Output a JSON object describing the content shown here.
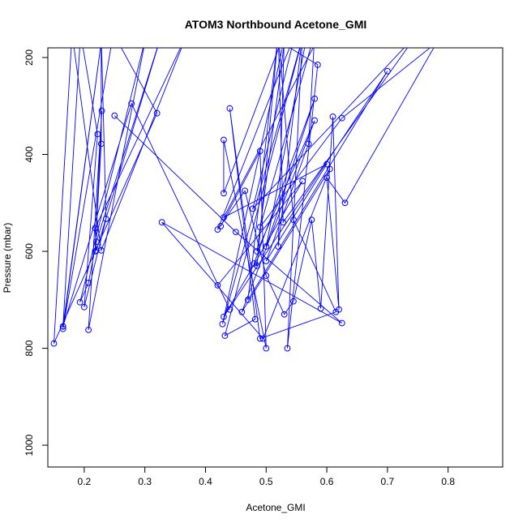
{
  "chart_data": {
    "type": "line",
    "title": "ATOM3 Northbound Acetone_GMI",
    "xlabel": "Acetone_GMI",
    "ylabel": "Pressure (mbar)",
    "xlim": [
      0.14,
      0.89
    ],
    "ylim": [
      1045,
      180
    ],
    "y_reversed": true,
    "x_ticks": [
      0.2,
      0.3,
      0.4,
      0.5,
      0.6,
      0.7,
      0.8
    ],
    "y_ticks": [
      200,
      400,
      600,
      800,
      1000
    ],
    "x_tick_labels": [
      "0.2",
      "0.3",
      "0.4",
      "0.5",
      "0.6",
      "0.7",
      "0.8"
    ],
    "y_tick_labels": [
      "200",
      "400",
      "600",
      "800",
      "1000"
    ],
    "grid": false,
    "series_color": "#0000ff",
    "series": [
      {
        "values": [
          [
            0.165,
            755
          ],
          [
            0.194,
            150
          ],
          [
            0.222,
            358
          ],
          [
            0.2,
            715
          ],
          [
            0.236,
            533
          ],
          [
            0.228,
            150
          ],
          [
            0.228,
            378
          ],
          [
            0.218,
            600
          ],
          [
            0.229,
            310
          ],
          [
            0.207,
            762
          ],
          [
            0.303,
            150
          ],
          [
            0.193,
            705
          ],
          [
            0.207,
            665
          ],
          [
            0.22,
            580
          ],
          [
            0.328,
            150
          ],
          [
            0.22,
            598
          ],
          [
            0.218,
            552
          ],
          [
            0.37,
            150
          ],
          [
            0.228,
            598
          ],
          [
            0.18,
            150
          ],
          [
            0.15,
            790
          ],
          [
            0.32,
            315
          ],
          [
            0.248,
            150
          ],
          [
            0.165,
            760
          ],
          [
            0.23,
            150
          ],
          [
            0.165,
            755
          ],
          [
            0.278,
            295
          ],
          [
            0.44,
            720
          ]
        ]
      },
      {
        "values": [
          [
            0.25,
            320
          ],
          [
            0.45,
            560
          ],
          [
            0.625,
            748
          ],
          [
            0.328,
            540
          ],
          [
            0.495,
            780
          ],
          [
            0.605,
            430
          ],
          [
            0.46,
            725
          ],
          [
            0.58,
            330
          ],
          [
            0.485,
            600
          ],
          [
            0.532,
            150
          ],
          [
            0.428,
            750
          ],
          [
            0.562,
            150
          ],
          [
            0.432,
            774
          ],
          [
            0.482,
            740
          ],
          [
            0.44,
            305
          ],
          [
            0.49,
            780
          ],
          [
            0.615,
            725
          ],
          [
            0.545,
            535
          ],
          [
            0.52,
            150
          ],
          [
            0.485,
            630
          ],
          [
            0.48,
            625
          ],
          [
            0.58,
            285
          ],
          [
            0.5,
            590
          ],
          [
            0.568,
            150
          ]
        ]
      },
      {
        "values": [
          [
            0.42,
            670
          ],
          [
            0.56,
            455
          ],
          [
            0.43,
            735
          ],
          [
            0.7,
            228
          ],
          [
            0.47,
            700
          ],
          [
            0.52,
            150
          ],
          [
            0.528,
            540
          ],
          [
            0.75,
            150
          ],
          [
            0.478,
            512
          ],
          [
            0.548,
            150
          ],
          [
            0.42,
            555
          ],
          [
            0.465,
            475
          ],
          [
            0.5,
            650
          ],
          [
            0.53,
            730
          ],
          [
            0.545,
            703
          ],
          [
            0.575,
            535
          ],
          [
            0.59,
            718
          ],
          [
            0.61,
            322
          ],
          [
            0.62,
            720
          ],
          [
            0.6,
            448
          ],
          [
            0.63,
            500
          ],
          [
            0.79,
            150
          ]
        ]
      },
      {
        "values": [
          [
            0.425,
            548
          ],
          [
            0.49,
            393
          ],
          [
            0.5,
            800
          ],
          [
            0.43,
            370
          ],
          [
            0.43,
            480
          ],
          [
            0.53,
            150
          ],
          [
            0.52,
            590
          ],
          [
            0.56,
            150
          ],
          [
            0.535,
            800
          ],
          [
            0.585,
            215
          ],
          [
            0.5,
            150
          ],
          [
            0.59,
            150
          ],
          [
            0.43,
            530
          ],
          [
            0.6,
            420
          ],
          [
            0.5,
            620
          ],
          [
            0.57,
            378
          ],
          [
            0.58,
            150
          ],
          [
            0.49,
            550
          ],
          [
            0.625,
            325
          ],
          [
            0.8,
            150
          ]
        ]
      }
    ]
  }
}
